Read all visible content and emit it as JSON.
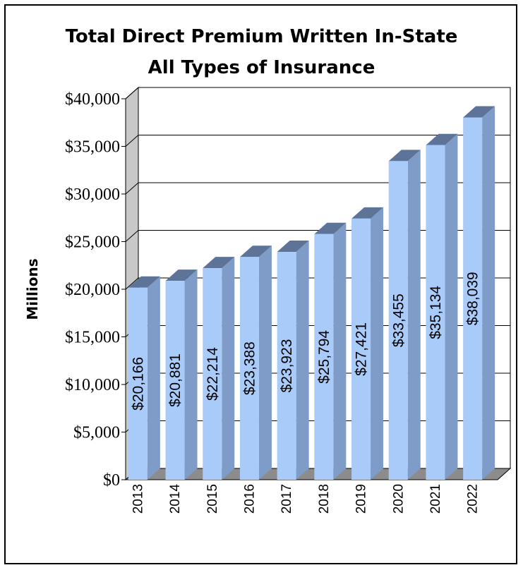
{
  "chart_data": {
    "type": "bar",
    "title_lines": [
      "Total Direct Premium Written In-State",
      "All Types of Insurance"
    ],
    "xlabel": "",
    "ylabel": "Millions",
    "categories": [
      "2013",
      "2014",
      "2015",
      "2016",
      "2017",
      "2018",
      "2019",
      "2020",
      "2021",
      "2022"
    ],
    "values": [
      20166,
      20881,
      22214,
      23388,
      23923,
      25794,
      27421,
      33455,
      35134,
      38039
    ],
    "data_labels": [
      "$20,166",
      "$20,881",
      "$22,214",
      "$23,388",
      "$23,923",
      "$25,794",
      "$27,421",
      "$33,455",
      "$35,134",
      "$38,039"
    ],
    "ylim": [
      0,
      40000
    ],
    "yticks": [
      0,
      5000,
      10000,
      15000,
      20000,
      25000,
      30000,
      35000,
      40000
    ],
    "ytick_labels": [
      "$0",
      "$5,000",
      "$10,000",
      "$15,000",
      "$20,000",
      "$25,000",
      "$30,000",
      "$35,000",
      "$40,000"
    ],
    "grid": true,
    "legend": "none",
    "colors": {
      "bar_front": "#a9cbf9",
      "bar_side": "#7e9cc7",
      "bar_top": "#5d7398",
      "side_wall": "#c8c8c8",
      "floor": "#8c8c8c"
    }
  }
}
